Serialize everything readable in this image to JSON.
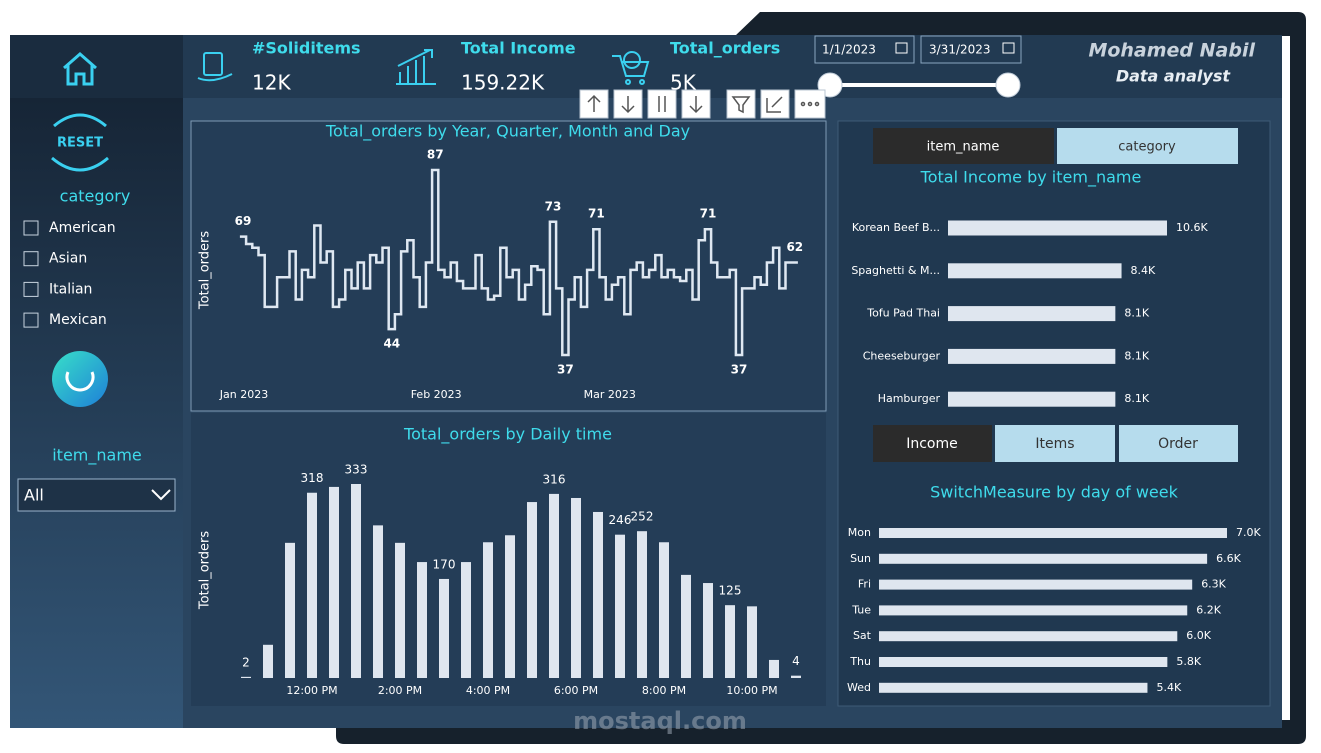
{
  "header": {
    "kpis": [
      {
        "label": "#Soliditems",
        "value": "12K"
      },
      {
        "label": "Total Income",
        "value": "159.22K"
      },
      {
        "label": "Total_orders",
        "value": "5K"
      }
    ],
    "date_start": "1/1/2023",
    "date_end": "3/31/2023",
    "author": "Mohamed Nabil",
    "role": "Data analyst"
  },
  "sidebar": {
    "reset": "RESET",
    "category_title": "category",
    "categories": [
      "American",
      "Asian",
      "Italian",
      "Mexican"
    ],
    "item_title": "item_name",
    "item_value": "All"
  },
  "item_toggle": [
    "item_name",
    "category"
  ],
  "measure_toggle": [
    "Income",
    "Items",
    "Order"
  ],
  "watermark": "mostaql.com",
  "chart_data": [
    {
      "type": "line",
      "title": "Total_orders by Year, Quarter, Month and Day",
      "y_label": "Total_orders",
      "color": "#dfe8f2",
      "categories": [
        "Jan 2023",
        null,
        null,
        null,
        null,
        null,
        null,
        null,
        null,
        null,
        null,
        null,
        null,
        null,
        null,
        null,
        null,
        null,
        null,
        null,
        null,
        null,
        null,
        null,
        null,
        null,
        null,
        null,
        null,
        null,
        null,
        "Feb 2023",
        null,
        null,
        null,
        null,
        null,
        null,
        null,
        null,
        null,
        null,
        null,
        null,
        null,
        null,
        null,
        null,
        null,
        null,
        null,
        null,
        null,
        null,
        null,
        null,
        null,
        null,
        null,
        "Mar 2023",
        null,
        null,
        null,
        null,
        null,
        null,
        null,
        null,
        null,
        null,
        null,
        null,
        null,
        null,
        null,
        null,
        null,
        null,
        null,
        null,
        null,
        null,
        null,
        null,
        null,
        null,
        null,
        null,
        null,
        null
      ],
      "values": [
        69,
        67,
        66,
        64,
        50,
        50,
        58,
        58,
        65,
        52,
        60,
        58,
        72,
        62,
        65,
        50,
        52,
        60,
        55,
        62,
        55,
        64,
        62,
        66,
        44,
        48,
        65,
        68,
        58,
        50,
        62,
        87,
        60,
        58,
        62,
        57,
        55,
        55,
        64,
        55,
        52,
        53,
        66,
        58,
        60,
        52,
        56,
        61,
        60,
        48,
        73,
        55,
        37,
        52,
        58,
        50,
        60,
        71,
        58,
        52,
        56,
        58,
        48,
        60,
        62,
        58,
        60,
        64,
        58,
        60,
        58,
        57,
        60,
        52,
        68,
        71,
        62,
        58,
        58,
        60,
        37,
        55,
        55,
        58,
        56,
        62,
        66,
        55,
        62,
        62
      ],
      "value_labels": [
        "69",
        null,
        null,
        null,
        null,
        null,
        null,
        null,
        null,
        null,
        null,
        null,
        null,
        null,
        null,
        null,
        null,
        null,
        null,
        null,
        null,
        null,
        null,
        null,
        "44",
        null,
        null,
        null,
        null,
        null,
        null,
        "87",
        null,
        null,
        null,
        null,
        null,
        null,
        null,
        null,
        null,
        null,
        null,
        null,
        null,
        null,
        null,
        null,
        null,
        null,
        "73",
        null,
        "37",
        null,
        null,
        null,
        null,
        "71",
        null,
        null,
        null,
        null,
        null,
        null,
        null,
        null,
        null,
        null,
        null,
        null,
        null,
        null,
        null,
        null,
        null,
        "71",
        null,
        null,
        null,
        null,
        "37",
        null,
        null,
        null,
        null,
        null,
        null,
        null,
        null,
        "62"
      ]
    },
    {
      "type": "bar",
      "title": "Total_orders by Daily time",
      "y_label": "Total_orders",
      "color": "#dfe6ef",
      "categories": [
        null,
        null,
        null,
        "12:00 PM",
        null,
        null,
        null,
        "2:00 PM",
        null,
        null,
        null,
        "4:00 PM",
        null,
        null,
        null,
        "6:00 PM",
        null,
        null,
        null,
        "8:00 PM",
        null,
        null,
        null,
        "10:00 PM",
        null,
        null
      ],
      "values": [
        2,
        57,
        232,
        318,
        328,
        333,
        262,
        232,
        199,
        170,
        199,
        233,
        245,
        302,
        316,
        309,
        285,
        246,
        252,
        233,
        177,
        163,
        125,
        123,
        31,
        4
      ],
      "value_labels": [
        "2",
        null,
        null,
        "318",
        null,
        "333",
        null,
        null,
        null,
        "170",
        null,
        null,
        null,
        null,
        "316",
        null,
        null,
        "246",
        "252",
        null,
        null,
        null,
        "125",
        null,
        null,
        "4"
      ]
    },
    {
      "type": "hbar",
      "title": "Total Income by item_name",
      "color": "#dfe6ef",
      "categories": [
        "Korean Beef B...",
        "Spaghetti & M...",
        "Tofu Pad Thai",
        "Cheeseburger",
        "Hamburger"
      ],
      "values": [
        10600,
        8400,
        8100,
        8100,
        8100
      ],
      "value_labels": [
        "10.6K",
        "8.4K",
        "8.1K",
        "8.1K",
        "8.1K"
      ]
    },
    {
      "type": "hbar",
      "title": "SwitchMeasure by day of week",
      "color": "#dfe6ef",
      "categories": [
        "Mon",
        "Sun",
        "Fri",
        "Tue",
        "Sat",
        "Thu",
        "Wed"
      ],
      "values": [
        7000,
        6600,
        6300,
        6200,
        6000,
        5800,
        5400
      ],
      "value_labels": [
        "7.0K",
        "6.6K",
        "6.3K",
        "6.2K",
        "6.0K",
        "5.8K",
        "5.4K"
      ]
    }
  ]
}
